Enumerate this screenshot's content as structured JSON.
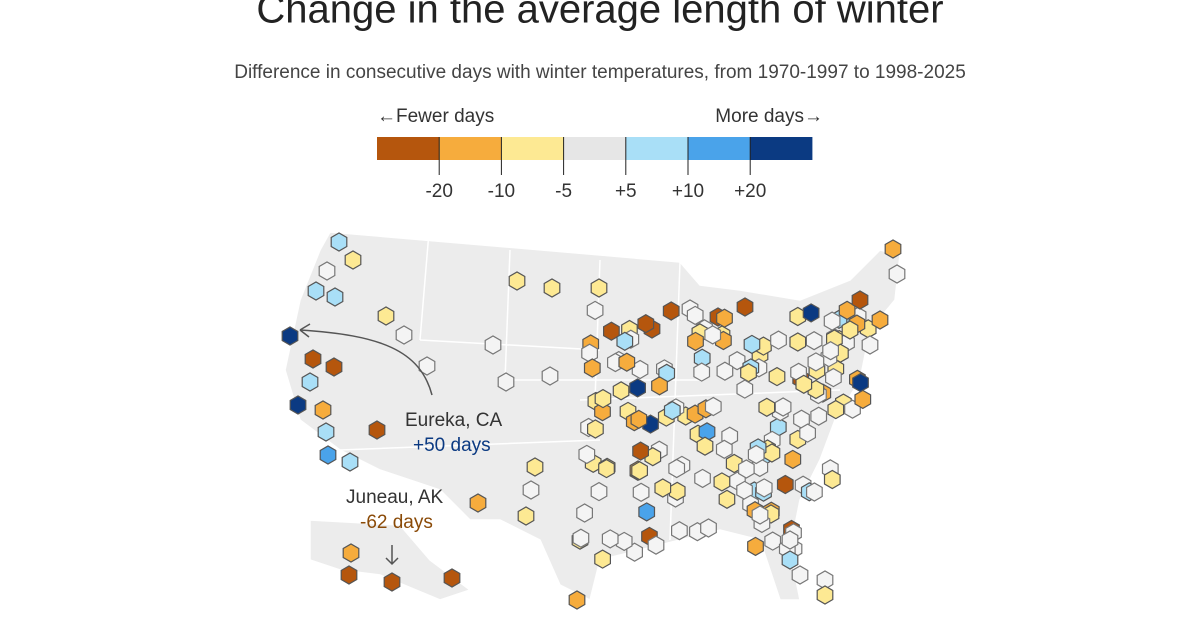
{
  "title": "Change in the average length of winter",
  "subtitle": "Difference in consecutive days with winter temperatures, from 1970-1997 to 1998-2025",
  "legend": {
    "left_label": "←Fewer days",
    "right_label": "More days→",
    "colors": [
      "#b5560d",
      "#f6ac3d",
      "#fde993",
      "#e6e6e6",
      "#a9dff7",
      "#4aa3ea",
      "#0b3a82"
    ],
    "ticks": [
      "-20",
      "-10",
      "-5",
      "+5",
      "+10",
      "+20"
    ]
  },
  "annotations": [
    {
      "place": "Eureka, CA",
      "change": "+50 days"
    },
    {
      "place": "Juneau, AK",
      "change": "-62 days"
    }
  ]
}
